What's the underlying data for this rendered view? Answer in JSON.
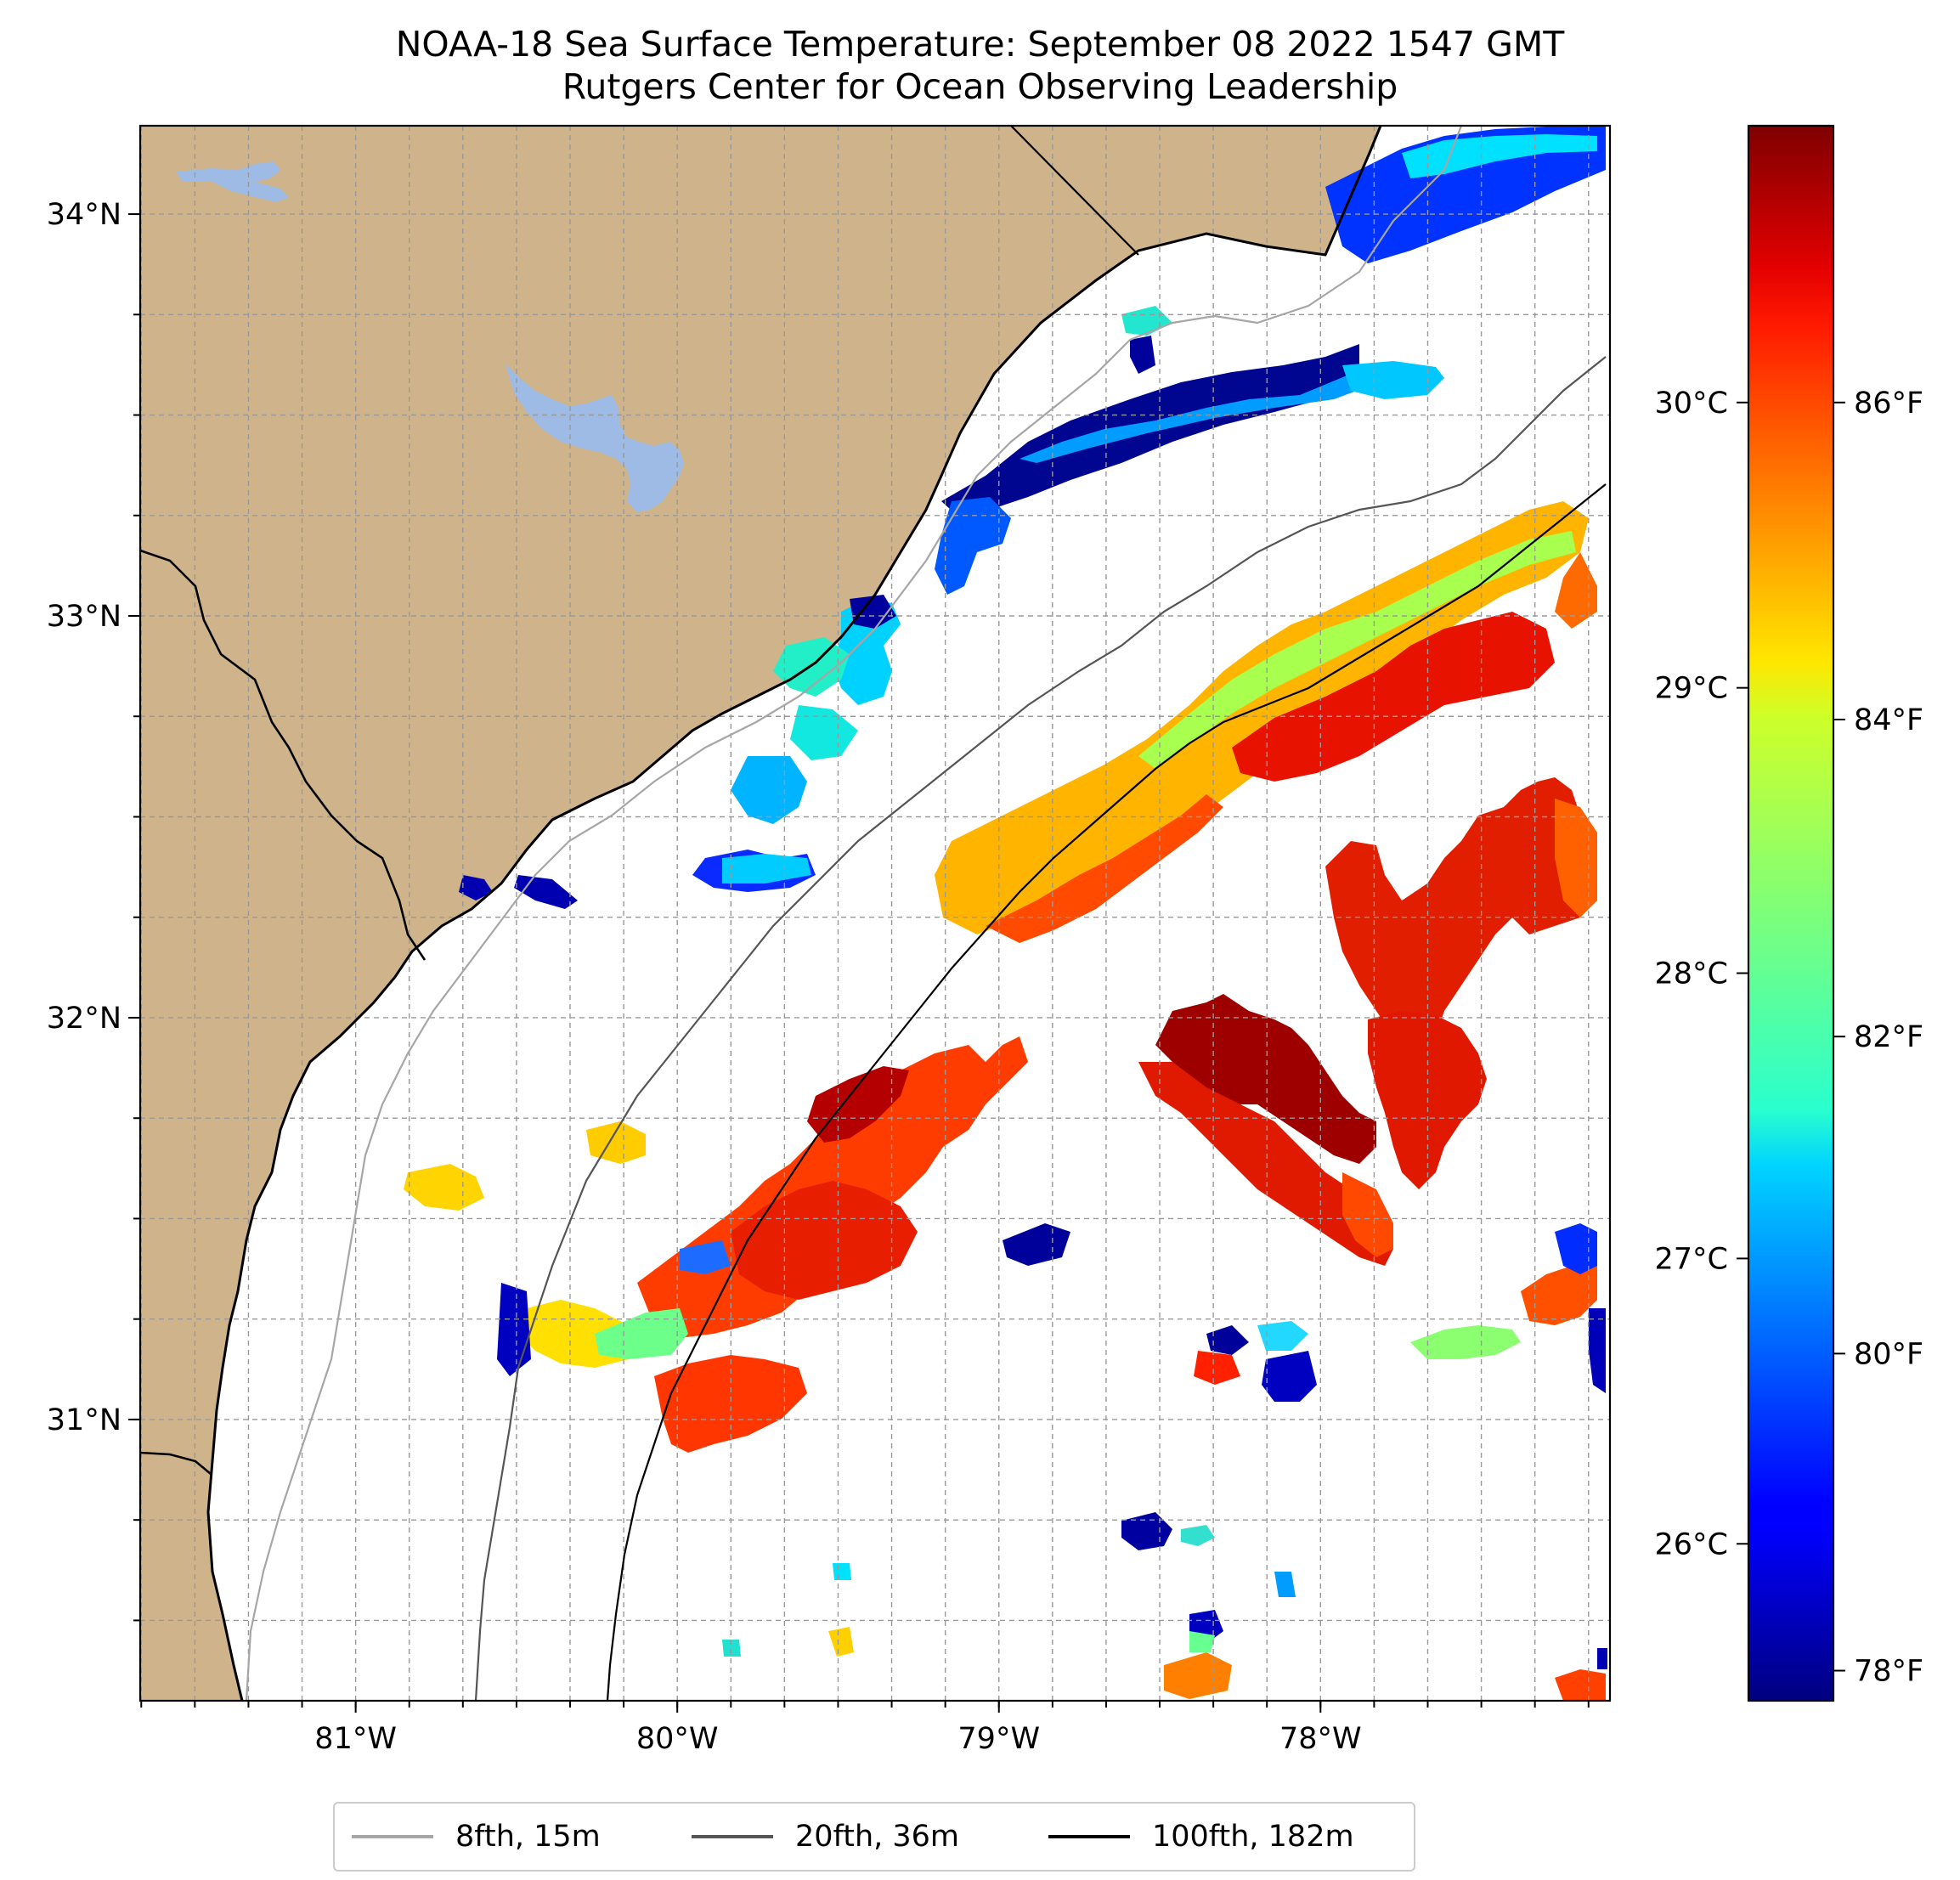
{
  "figure": {
    "title": "NOAA-18 Sea Surface Temperature: September 08 2022 1547 GMT",
    "subtitle": "Rutgers Center for Ocean Observing Leadership"
  },
  "map": {
    "lon_range": [
      -81.67,
      -77.1
    ],
    "lat_range": [
      30.3,
      34.22
    ],
    "lon_ticks": [
      {
        "value": -81,
        "label": "81°W"
      },
      {
        "value": -80,
        "label": "80°W"
      },
      {
        "value": -79,
        "label": "79°W"
      },
      {
        "value": -78,
        "label": "78°W"
      }
    ],
    "lat_ticks": [
      {
        "value": 31,
        "label": "31°N"
      },
      {
        "value": 32,
        "label": "32°N"
      },
      {
        "value": 33,
        "label": "33°N"
      },
      {
        "value": 34,
        "label": "34°N"
      }
    ],
    "gridlines": true,
    "land_color": "#cfb38b",
    "water_body_color": "#9dbbe5"
  },
  "colorbar": {
    "celsius_range": [
      25.45,
      30.97
    ],
    "celsius_ticks": [
      {
        "value": 26,
        "label": "26°C"
      },
      {
        "value": 27,
        "label": "27°C"
      },
      {
        "value": 28,
        "label": "28°C"
      },
      {
        "value": 29,
        "label": "29°C"
      },
      {
        "value": 30,
        "label": "30°C"
      }
    ],
    "fahrenheit_ticks": [
      {
        "value": 78,
        "label": "78°F"
      },
      {
        "value": 80,
        "label": "80°F"
      },
      {
        "value": 82,
        "label": "82°F"
      },
      {
        "value": 84,
        "label": "84°F"
      },
      {
        "value": 86,
        "label": "86°F"
      }
    ],
    "colormap": "jet"
  },
  "legend": {
    "position": "bottom-center",
    "items": [
      {
        "label": "8fth, 15m",
        "color": "#a6a6a6"
      },
      {
        "label": "20fth, 36m",
        "color": "#555555"
      },
      {
        "label": "100fth, 182m",
        "color": "#000000"
      }
    ]
  }
}
